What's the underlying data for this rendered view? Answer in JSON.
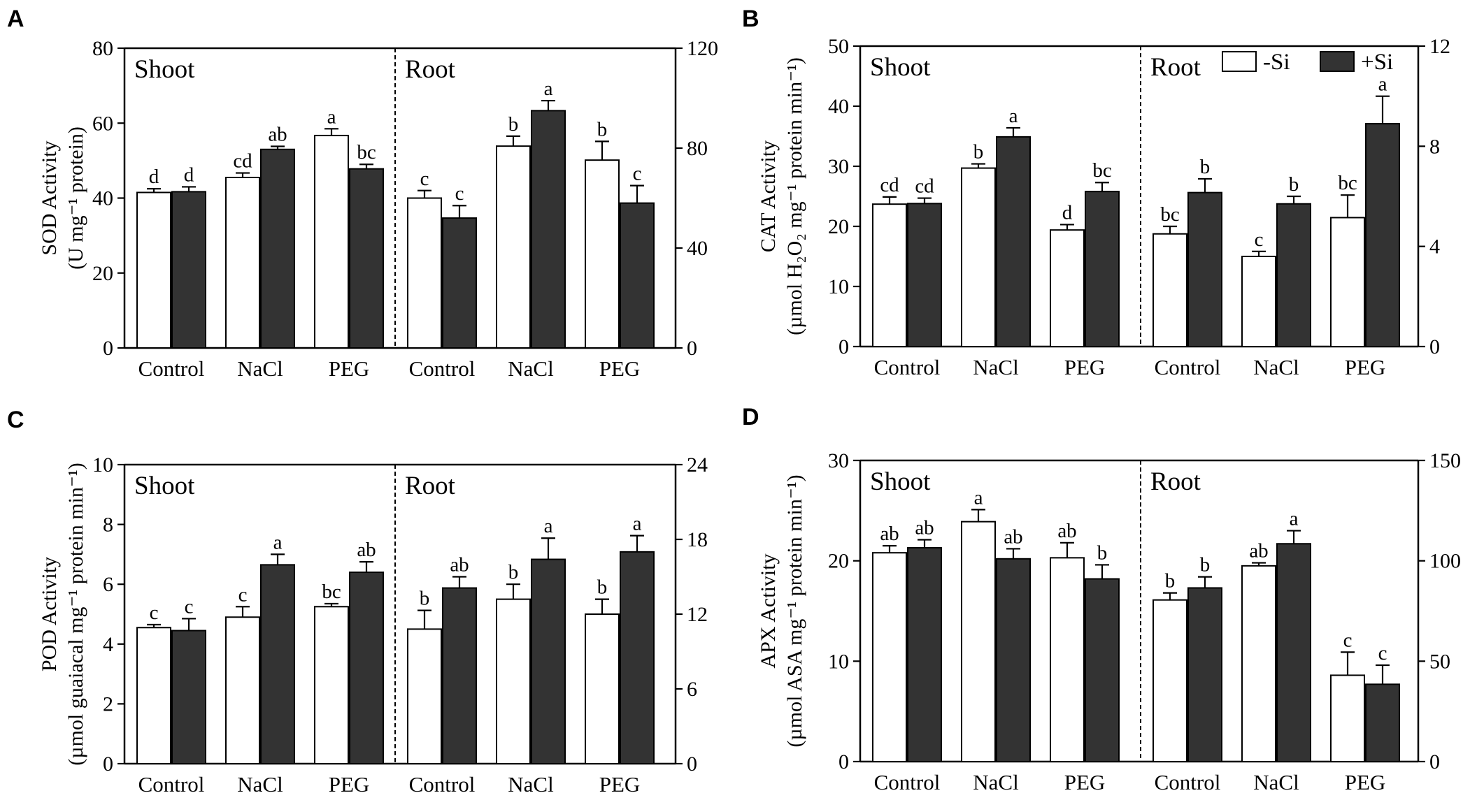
{
  "chart_data": [
    {
      "panel": "A",
      "type": "bar",
      "ylabel_line1": "SOD Activity",
      "ylabel_line2": "(U mg⁻¹ protein)",
      "left_axis": {
        "min": 0,
        "max": 80,
        "ticks": [
          0,
          20,
          40,
          60,
          80
        ]
      },
      "right_axis": {
        "min": 0,
        "max": 120,
        "ticks": [
          0,
          40,
          80,
          120
        ]
      },
      "sections": [
        {
          "label": "Shoot",
          "axis": "left",
          "categories": [
            "Control",
            "NaCl",
            "PEG"
          ],
          "minus_si": [
            41.5,
            45.5,
            56.7
          ],
          "minus_si_err": [
            1.0,
            1.2,
            1.8
          ],
          "plus_si": [
            41.7,
            53.0,
            47.8
          ],
          "plus_si_err": [
            1.3,
            0.8,
            1.2
          ],
          "minus_si_sig": [
            "d",
            "cd",
            "a"
          ],
          "plus_si_sig": [
            "d",
            "ab",
            "bc"
          ]
        },
        {
          "label": "Root",
          "axis": "right",
          "categories": [
            "Control",
            "NaCl",
            "PEG"
          ],
          "minus_si": [
            60.0,
            80.8,
            75.2
          ],
          "minus_si_err": [
            3.0,
            4.0,
            7.5
          ],
          "plus_si": [
            52.0,
            95.0,
            58.0
          ],
          "plus_si_err": [
            5.0,
            4.0,
            7.0
          ],
          "minus_si_sig": [
            "c",
            "b",
            "b"
          ],
          "plus_si_sig": [
            "c",
            "a",
            "c"
          ]
        }
      ]
    },
    {
      "panel": "B",
      "type": "bar",
      "ylabel_line1": "CAT Activity",
      "ylabel_line2": "(µmol H₂O₂ mg⁻¹ protein min⁻¹)",
      "left_axis": {
        "min": 0,
        "max": 50,
        "ticks": [
          0,
          10,
          20,
          30,
          40,
          50
        ]
      },
      "right_axis": {
        "min": 0,
        "max": 12,
        "ticks": [
          0,
          4,
          8,
          12
        ]
      },
      "legend": {
        "minus_si": "-Si",
        "plus_si": "+Si"
      },
      "sections": [
        {
          "label": "Shoot",
          "axis": "left",
          "categories": [
            "Control",
            "NaCl",
            "PEG"
          ],
          "minus_si": [
            23.7,
            29.7,
            19.4
          ],
          "minus_si_err": [
            1.2,
            0.7,
            0.9
          ],
          "plus_si": [
            23.8,
            34.9,
            25.8
          ],
          "plus_si_err": [
            0.9,
            1.5,
            1.5
          ],
          "minus_si_sig": [
            "cd",
            "b",
            "d"
          ],
          "plus_si_sig": [
            "cd",
            "a",
            "bc"
          ]
        },
        {
          "label": "Root",
          "axis": "right",
          "categories": [
            "Control",
            "NaCl",
            "PEG"
          ],
          "minus_si": [
            4.5,
            3.6,
            5.15
          ],
          "minus_si_err": [
            0.3,
            0.2,
            0.9
          ],
          "plus_si": [
            6.15,
            5.7,
            8.9
          ],
          "plus_si_err": [
            0.55,
            0.3,
            1.1
          ],
          "minus_si_sig": [
            "bc",
            "c",
            "bc"
          ],
          "plus_si_sig": [
            "b",
            "b",
            "a"
          ]
        }
      ]
    },
    {
      "panel": "C",
      "type": "bar",
      "ylabel_line1": "POD Activity",
      "ylabel_line2": "(µmol guaiacal mg⁻¹ protein min⁻¹)",
      "left_axis": {
        "min": 0,
        "max": 10,
        "ticks": [
          0,
          2,
          4,
          6,
          8,
          10
        ]
      },
      "right_axis": {
        "min": 0,
        "max": 24,
        "ticks": [
          0,
          6,
          12,
          18,
          24
        ]
      },
      "sections": [
        {
          "label": "Shoot",
          "axis": "left",
          "categories": [
            "Control",
            "NaCl",
            "PEG"
          ],
          "minus_si": [
            4.55,
            4.9,
            5.25
          ],
          "minus_si_err": [
            0.1,
            0.35,
            0.1
          ],
          "plus_si": [
            4.45,
            6.65,
            6.4
          ],
          "plus_si_err": [
            0.4,
            0.35,
            0.35
          ],
          "minus_si_sig": [
            "c",
            "c",
            "bc"
          ],
          "plus_si_sig": [
            "c",
            "a",
            "ab"
          ]
        },
        {
          "label": "Root",
          "axis": "right",
          "categories": [
            "Control",
            "NaCl",
            "PEG"
          ],
          "minus_si": [
            10.8,
            13.2,
            12.0
          ],
          "minus_si_err": [
            1.5,
            1.2,
            1.2
          ],
          "plus_si": [
            14.1,
            16.4,
            17.0
          ],
          "plus_si_err": [
            0.9,
            1.7,
            1.3
          ],
          "minus_si_sig": [
            "b",
            "b",
            "b"
          ],
          "plus_si_sig": [
            "ab",
            "a",
            "a"
          ]
        }
      ]
    },
    {
      "panel": "D",
      "type": "bar",
      "ylabel_line1": "APX Activity",
      "ylabel_line2": "(µmol ASA mg⁻¹ protein min⁻¹)",
      "left_axis": {
        "min": 0,
        "max": 30,
        "ticks": [
          0,
          10,
          20,
          30
        ]
      },
      "right_axis": {
        "min": 0,
        "max": 150,
        "ticks": [
          0,
          50,
          100,
          150
        ]
      },
      "sections": [
        {
          "label": "Shoot",
          "axis": "left",
          "categories": [
            "Control",
            "NaCl",
            "PEG"
          ],
          "minus_si": [
            20.8,
            23.9,
            20.3
          ],
          "minus_si_err": [
            0.7,
            1.2,
            1.5
          ],
          "plus_si": [
            21.3,
            20.2,
            18.2
          ],
          "plus_si_err": [
            0.8,
            1.0,
            1.4
          ],
          "minus_si_sig": [
            "ab",
            "a",
            "ab"
          ],
          "plus_si_sig": [
            "ab",
            "ab",
            "b"
          ]
        },
        {
          "label": "Root",
          "axis": "right",
          "categories": [
            "Control",
            "NaCl",
            "PEG"
          ],
          "minus_si": [
            80.5,
            97.5,
            43.0
          ],
          "minus_si_err": [
            3.5,
            1.5,
            11.5
          ],
          "plus_si": [
            86.5,
            108.5,
            38.5
          ],
          "plus_si_err": [
            5.5,
            6.5,
            9.5
          ],
          "minus_si_sig": [
            "b",
            "ab",
            "c"
          ],
          "plus_si_sig": [
            "b",
            "a",
            "c"
          ]
        }
      ]
    }
  ],
  "colors": {
    "minus_si_fill": "#ffffff",
    "plus_si_fill": "#333333",
    "stroke": "#000000"
  }
}
